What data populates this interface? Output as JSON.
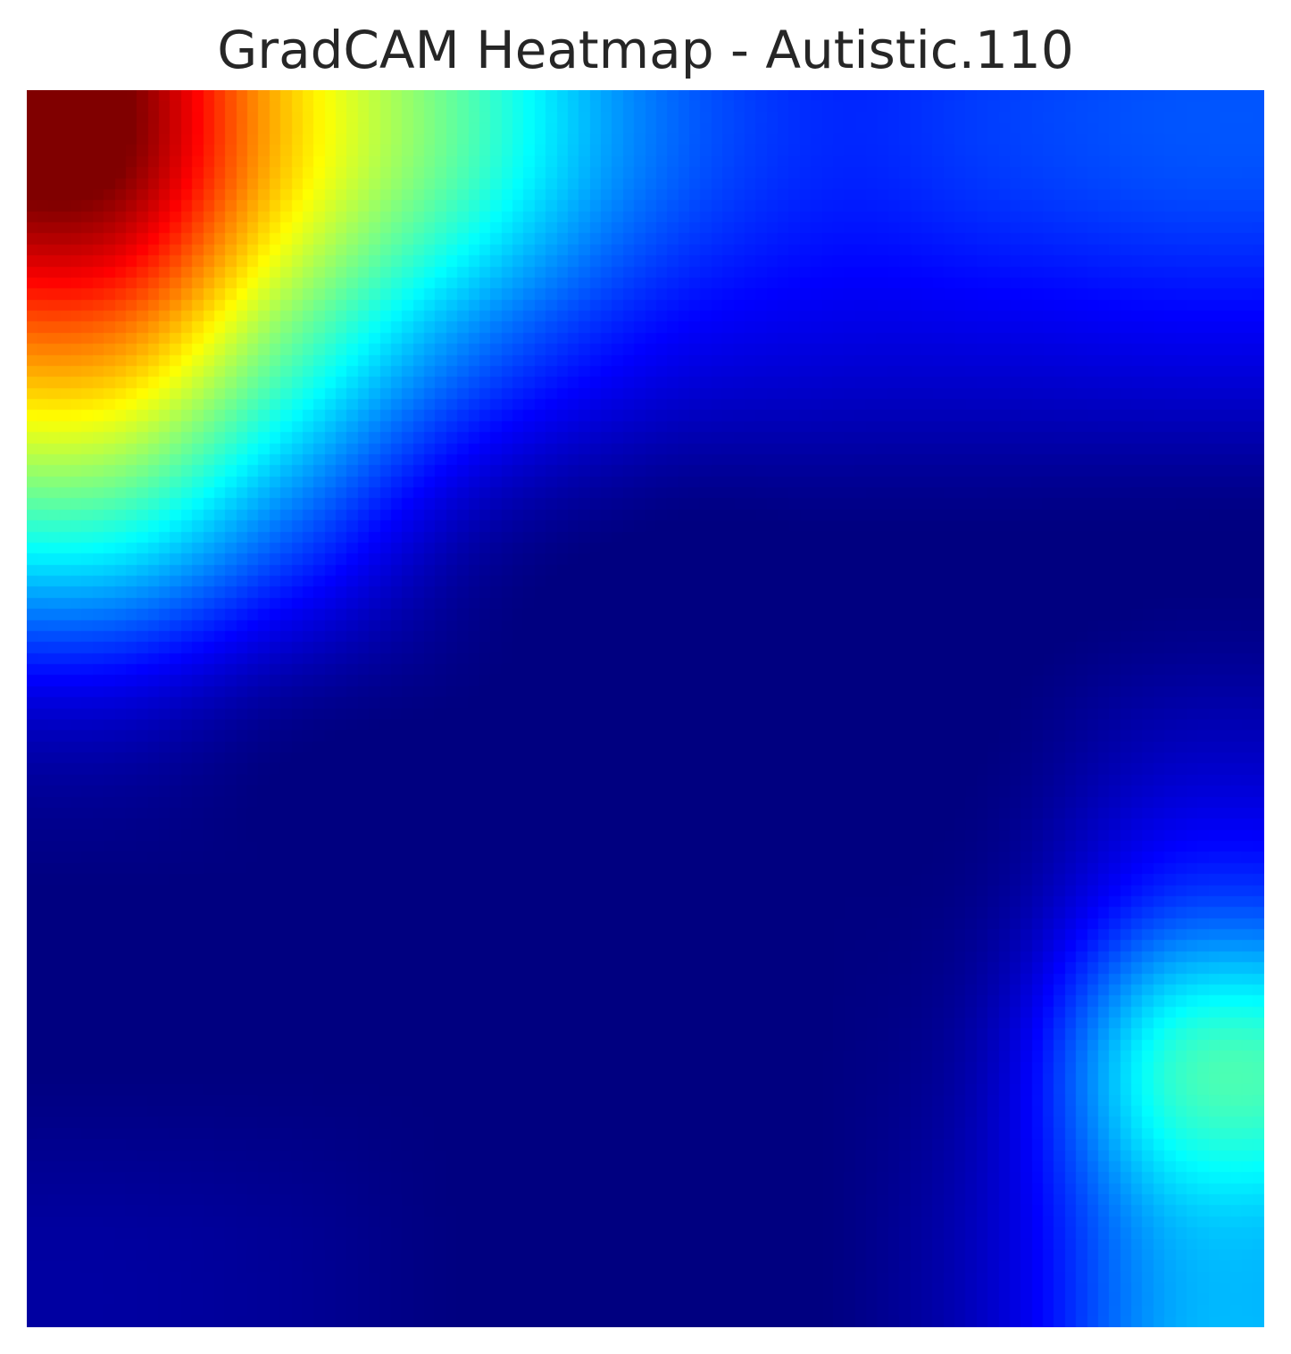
{
  "chart_data": {
    "type": "heatmap",
    "title": "GradCAM Heatmap - Autistic.110",
    "colormap": "jet",
    "value_range": [
      0,
      1
    ],
    "axes_visible": false,
    "grid": false,
    "colorbar": false,
    "rows": 7,
    "cols": 7,
    "values": [
      [
        1.0,
        0.66,
        0.44,
        0.24,
        0.16,
        0.18,
        0.2
      ],
      [
        0.72,
        0.46,
        0.24,
        0.12,
        0.09,
        0.09,
        0.1
      ],
      [
        0.4,
        0.22,
        0.05,
        0.0,
        0.0,
        0.0,
        0.0
      ],
      [
        0.08,
        0.02,
        0.0,
        0.0,
        0.0,
        0.0,
        0.04
      ],
      [
        0.0,
        0.0,
        0.0,
        0.0,
        0.0,
        0.02,
        0.16
      ],
      [
        0.0,
        0.0,
        0.0,
        0.0,
        0.0,
        0.07,
        0.42
      ],
      [
        0.03,
        0.02,
        0.0,
        0.0,
        0.0,
        0.08,
        0.3
      ]
    ]
  }
}
